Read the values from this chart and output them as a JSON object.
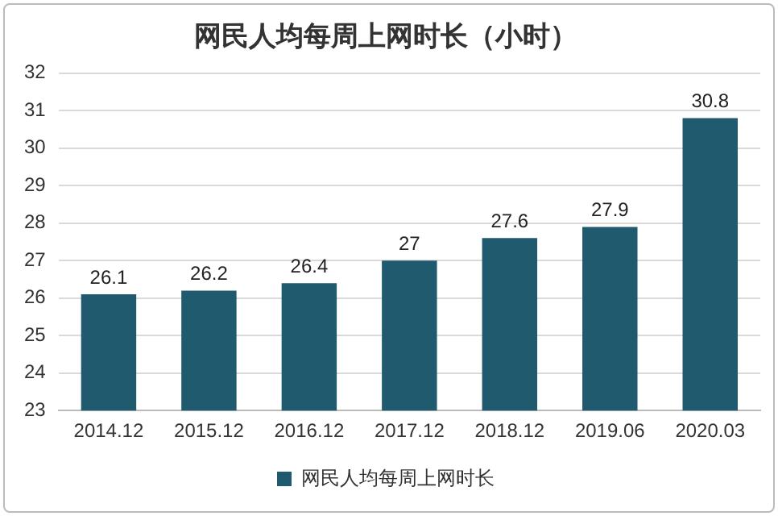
{
  "chart_data": {
    "type": "bar",
    "title": "网民人均每周上网时长（小时）",
    "categories": [
      "2014.12",
      "2015.12",
      "2016.12",
      "2017.12",
      "2018.12",
      "2019.06",
      "2020.03"
    ],
    "series": [
      {
        "name": "网民人均每周上网时长",
        "color": "#1f5a6e",
        "values": [
          26.1,
          26.2,
          26.4,
          27,
          27.6,
          27.9,
          30.8
        ]
      }
    ],
    "ylim": [
      23,
      32
    ],
    "yticks": [
      23,
      24,
      25,
      26,
      27,
      28,
      29,
      30,
      31,
      32
    ],
    "grid": "y",
    "legend": "bottom",
    "data_labels": true
  }
}
